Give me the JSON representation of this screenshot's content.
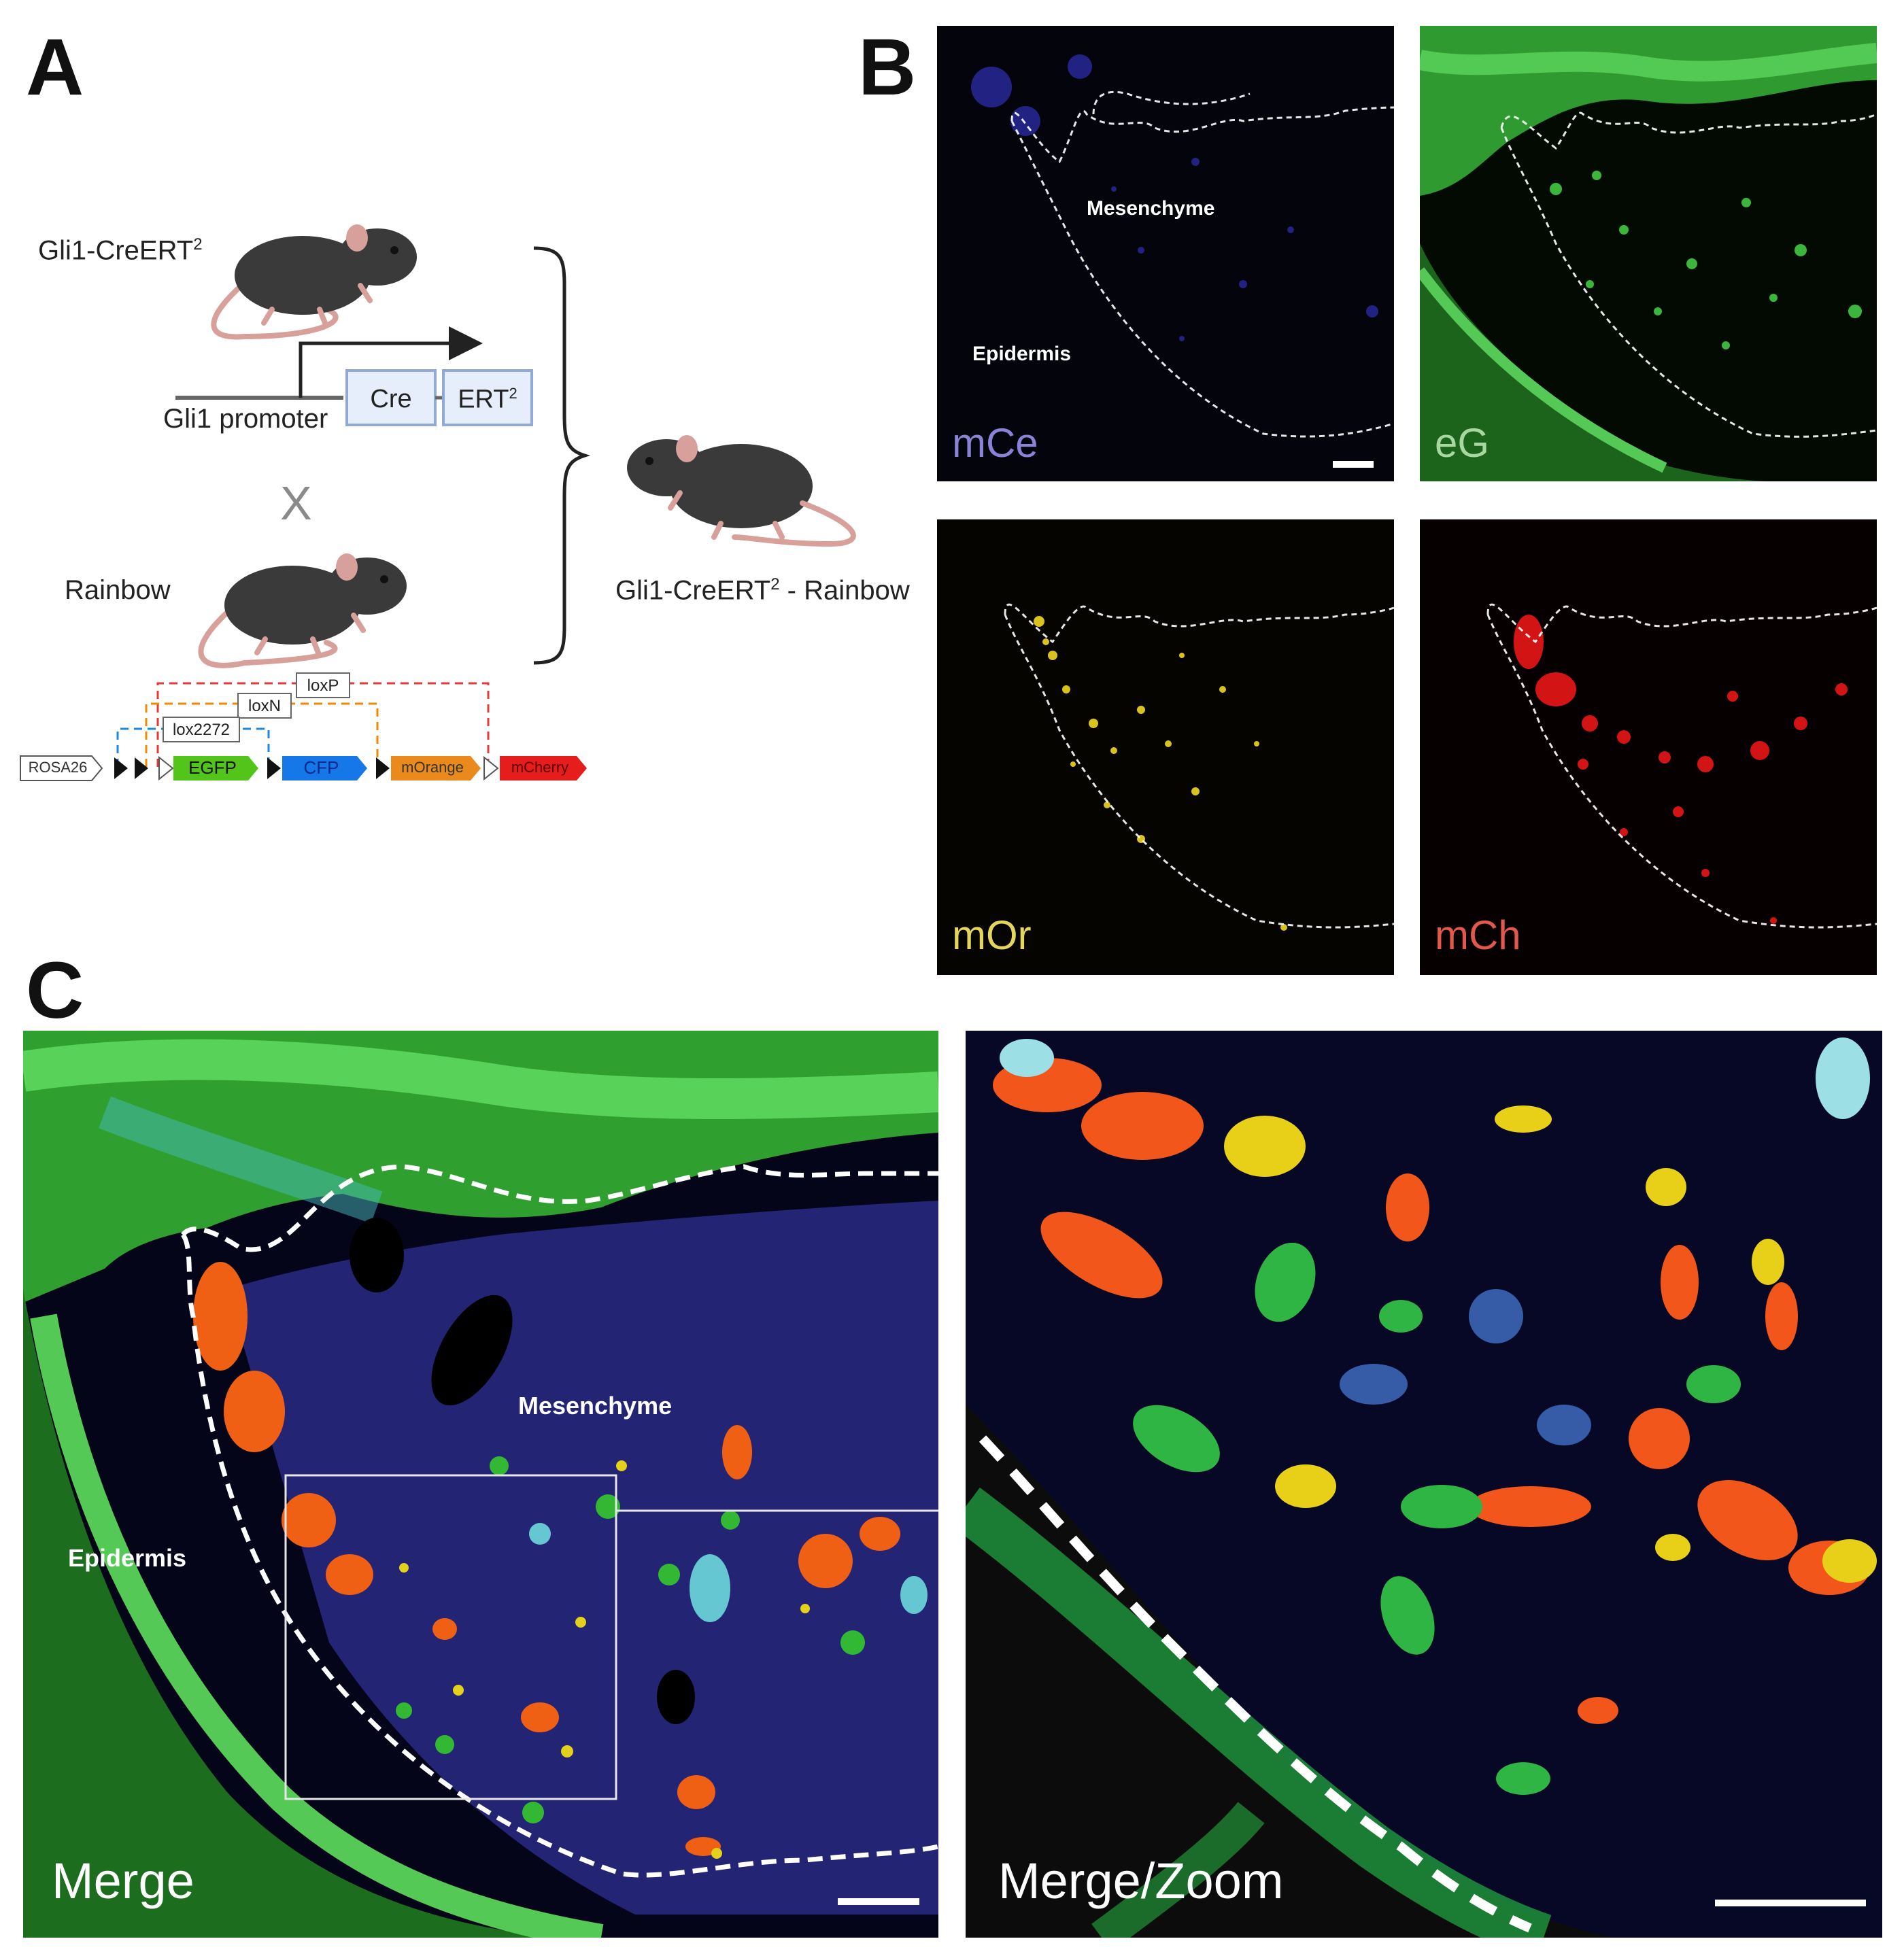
{
  "panels": {
    "a": {
      "letter": "A"
    },
    "b": {
      "letter": "B"
    },
    "c": {
      "letter": "C"
    }
  },
  "diagram": {
    "parent1": {
      "name": "Gli1-CreERT",
      "sup": "2"
    },
    "promoter_label": "Gli1 promoter",
    "cre_box": "Cre",
    "ert_box": {
      "name": "ERT",
      "sup": "2"
    },
    "cross_symbol": "X",
    "parent2": {
      "name": "Rainbow"
    },
    "offspring": {
      "prefix": "Gli1-CreERT",
      "sup": "2",
      "suffix": " - Rainbow"
    },
    "lox_sites": [
      "loxP",
      "loxN",
      "lox2272"
    ],
    "construct": [
      "ROSA26",
      "EGFP",
      "CFP",
      "mOrange",
      "mCherry"
    ]
  },
  "channels": [
    {
      "label": "mCe",
      "color": "#8a82d6"
    },
    {
      "label": "eG",
      "color": "#a8d7a0"
    },
    {
      "label": "mOr",
      "color": "#e3d65a"
    },
    {
      "label": "mCh",
      "color": "#e2584a"
    }
  ],
  "tissue_labels": {
    "mesenchyme": "Mesenchyme",
    "epidermis": "Epidermis"
  },
  "merge_labels": {
    "merge": "Merge",
    "zoom": "Merge/Zoom"
  }
}
